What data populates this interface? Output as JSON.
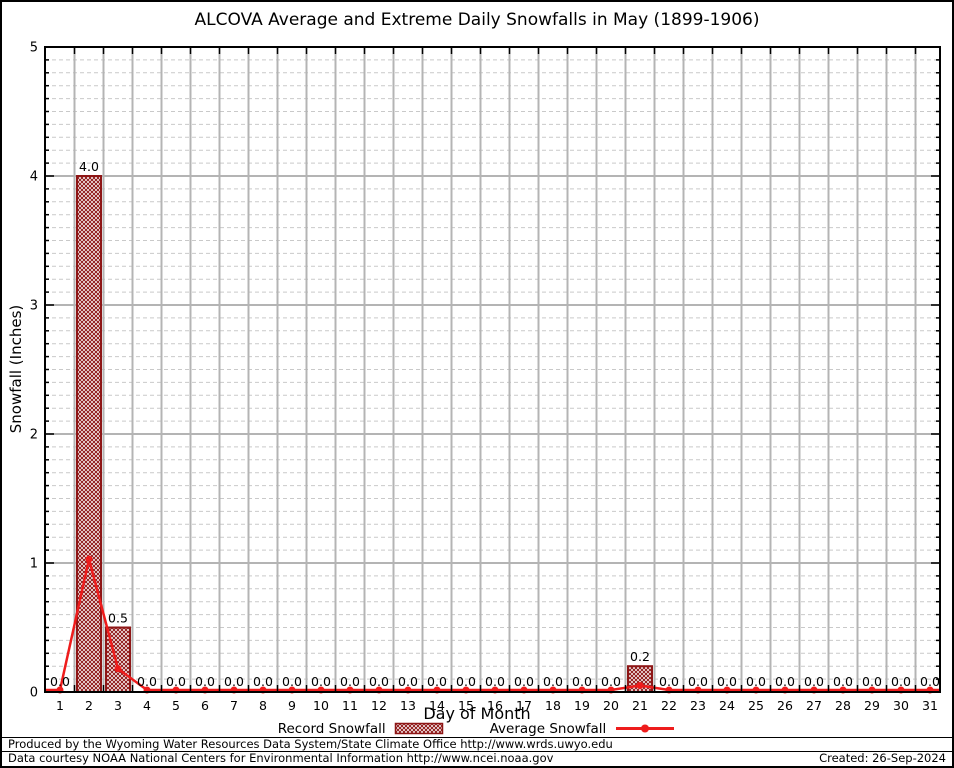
{
  "chart_data": {
    "type": "bar",
    "title": "ALCOVA Average and Extreme Daily Snowfalls in May (1899-1906)",
    "xlabel": "Day of Month",
    "ylabel": "Snowfall (Inches)",
    "ylim": [
      0,
      5
    ],
    "yticks": [
      0,
      1,
      2,
      3,
      4,
      5
    ],
    "minor_grid_step": 0.1,
    "grid": "major solid + minor dashed, vertical lines at day boundaries",
    "legend_position": "bottom",
    "x": [
      1,
      2,
      3,
      4,
      5,
      6,
      7,
      8,
      9,
      10,
      11,
      12,
      13,
      14,
      15,
      16,
      17,
      18,
      19,
      20,
      21,
      22,
      23,
      24,
      25,
      26,
      27,
      28,
      29,
      30,
      31
    ],
    "series": [
      {
        "name": "Record Snowfall",
        "type": "bar",
        "values": [
          0,
          4.0,
          0.5,
          0,
          0,
          0,
          0,
          0,
          0,
          0,
          0,
          0,
          0,
          0,
          0,
          0,
          0,
          0,
          0,
          0,
          0.2,
          0,
          0,
          0,
          0,
          0,
          0,
          0,
          0,
          0,
          0
        ]
      },
      {
        "name": "Average Snowfall",
        "type": "line",
        "values": [
          0,
          1.03,
          0.18,
          0,
          0,
          0,
          0,
          0,
          0,
          0,
          0,
          0,
          0,
          0,
          0,
          0,
          0,
          0,
          0,
          0,
          0.05,
          0,
          0,
          0,
          0,
          0,
          0,
          0,
          0,
          0,
          0
        ]
      }
    ],
    "colors": {
      "bar": "#8e1616",
      "line": "#ee1c1c",
      "grid_major": "#b4b4b4",
      "grid_minor": "#c9c9c9",
      "axis": "#000000"
    }
  },
  "legend": {
    "record_label": "Record Snowfall",
    "average_label": "Average Snowfall"
  },
  "footer": {
    "produced_by": "Produced by the Wyoming Water Resources Data System/State Climate Office http://www.wrds.uwyo.edu",
    "data_courtesy": "Data courtesy NOAA National Centers for Environmental Information http://www.ncei.noaa.gov",
    "created": "Created: 26-Sep-2024"
  }
}
